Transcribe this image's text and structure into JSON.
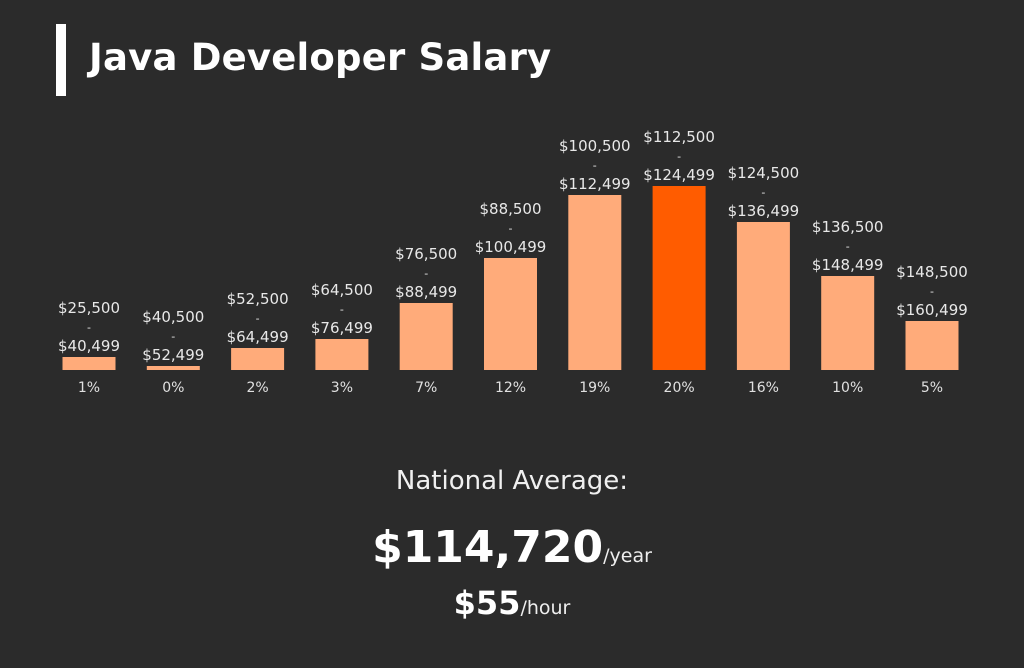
{
  "chart_data": {
    "type": "bar",
    "title": "Java Developer Salary",
    "categories": [
      [
        "$25,500",
        "-",
        "$40,499"
      ],
      [
        "$40,500",
        "-",
        "$52,499"
      ],
      [
        "$52,500",
        "-",
        "$64,499"
      ],
      [
        "$64,500",
        "-",
        "$76,499"
      ],
      [
        "$76,500",
        "-",
        "$88,499"
      ],
      [
        "$88,500",
        "-",
        "$100,499"
      ],
      [
        "$100,500",
        "-",
        "$112,499"
      ],
      [
        "$112,500",
        "-",
        "$124,499"
      ],
      [
        "$124,500",
        "-",
        "$136,499"
      ],
      [
        "$136,500",
        "-",
        "$148,499"
      ],
      [
        "$148,500",
        "-",
        "$160,499"
      ]
    ],
    "values": [
      1,
      0,
      2,
      3,
      7,
      12,
      19,
      20,
      16,
      10,
      5
    ],
    "value_labels": [
      "1%",
      "0%",
      "2%",
      "3%",
      "7%",
      "12%",
      "19%",
      "20%",
      "16%",
      "10%",
      "5%"
    ],
    "highlight_index": 7,
    "ylim": [
      0,
      20
    ],
    "xlabel": "",
    "ylabel": "",
    "grid": false
  },
  "colors": {
    "bar": "#ffab7a",
    "highlight": "#ff5c00",
    "background": "#2b2b2b"
  },
  "summary": {
    "label": "National Average:",
    "yearly_value": "$114,720",
    "yearly_unit": "/year",
    "hourly_value": "$55",
    "hourly_unit": "/hour"
  }
}
